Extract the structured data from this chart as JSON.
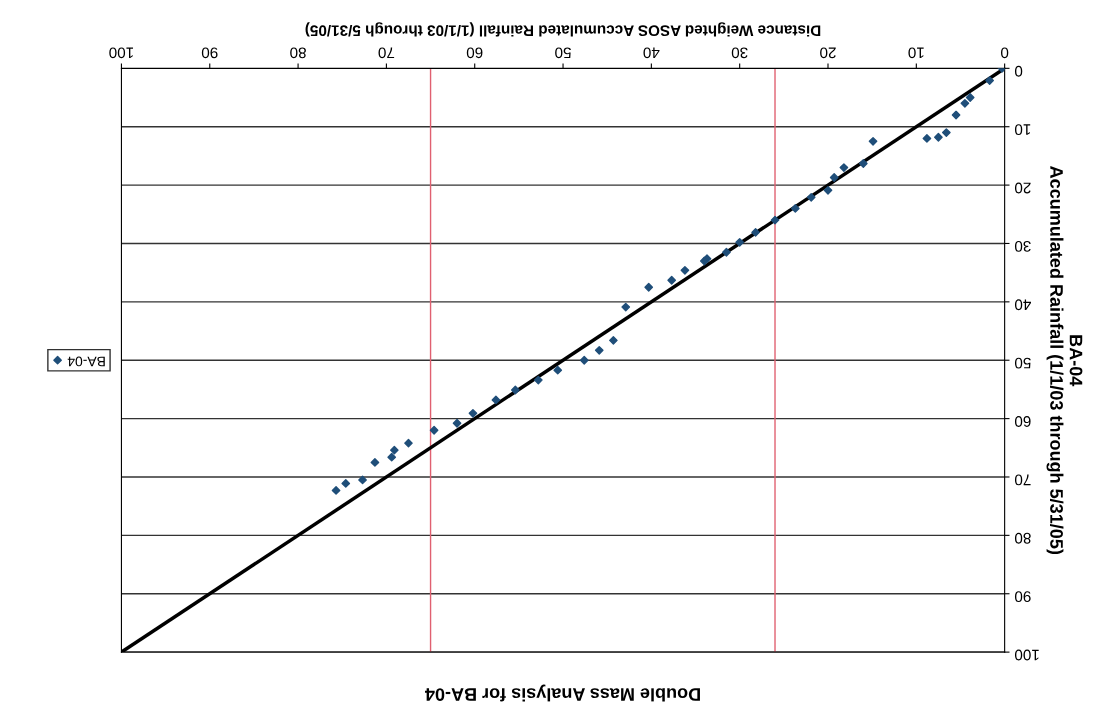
{
  "chart_data": {
    "type": "scatter",
    "title": "Double Mass Analysis for BA-04",
    "xlabel": "Distance Weighted ASOS Accumulated Rainfall (1/1/03 through 5/31/05)",
    "ylabel": "BA-04\nAccumulated Rainfall (1/1/03 through 5/31/05)",
    "xlim": [
      100,
      0
    ],
    "ylim": [
      100,
      0
    ],
    "xticks": [
      0,
      10,
      20,
      30,
      40,
      50,
      60,
      70,
      80,
      90,
      100
    ],
    "yticks": [
      0,
      10,
      20,
      30,
      40,
      50,
      60,
      70,
      80,
      90,
      100
    ],
    "grid": "y",
    "legend": "left",
    "marker": "diamond",
    "ref_lines": [
      {
        "axis": "x",
        "value": 26,
        "color": "#e06070"
      },
      {
        "axis": "x",
        "value": 65,
        "color": "#e06070"
      }
    ],
    "series": [
      {
        "name": "BA-04",
        "color": "#1f4e79",
        "x": [
          0.3,
          1.7,
          3.9,
          4.5,
          5.5,
          6.6,
          7.5,
          8.8,
          14.9,
          16.0,
          18.2,
          19.3,
          20.0,
          21.9,
          23.7,
          26.0,
          28.2,
          30.0,
          31.5,
          33.7,
          34.0,
          36.2,
          37.7,
          40.3,
          42.9,
          44.3,
          45.9,
          47.6,
          50.6,
          52.8,
          55.4,
          57.6,
          60.2,
          62.0,
          64.6,
          67.5,
          69.1,
          69.4,
          71.3,
          72.7,
          74.6,
          75.7
        ],
        "values": [
          0,
          2.1,
          5.0,
          6.0,
          8.0,
          11.0,
          11.8,
          12.0,
          12.5,
          16.3,
          17.0,
          18.7,
          20.9,
          22.1,
          24.0,
          26.0,
          28.1,
          29.8,
          31.5,
          32.6,
          33.0,
          34.6,
          36.3,
          37.5,
          40.9,
          46.6,
          48.3,
          50.0,
          51.7,
          53.4,
          55.1,
          56.8,
          59.1,
          60.8,
          62.0,
          64.2,
          65.4,
          66.6,
          67.5,
          70.5,
          71.1,
          72.3
        ]
      },
      {
        "type": "line",
        "color": "#000000",
        "marker": "none",
        "x": [
          0,
          100
        ],
        "values": [
          0,
          100
        ]
      }
    ]
  }
}
